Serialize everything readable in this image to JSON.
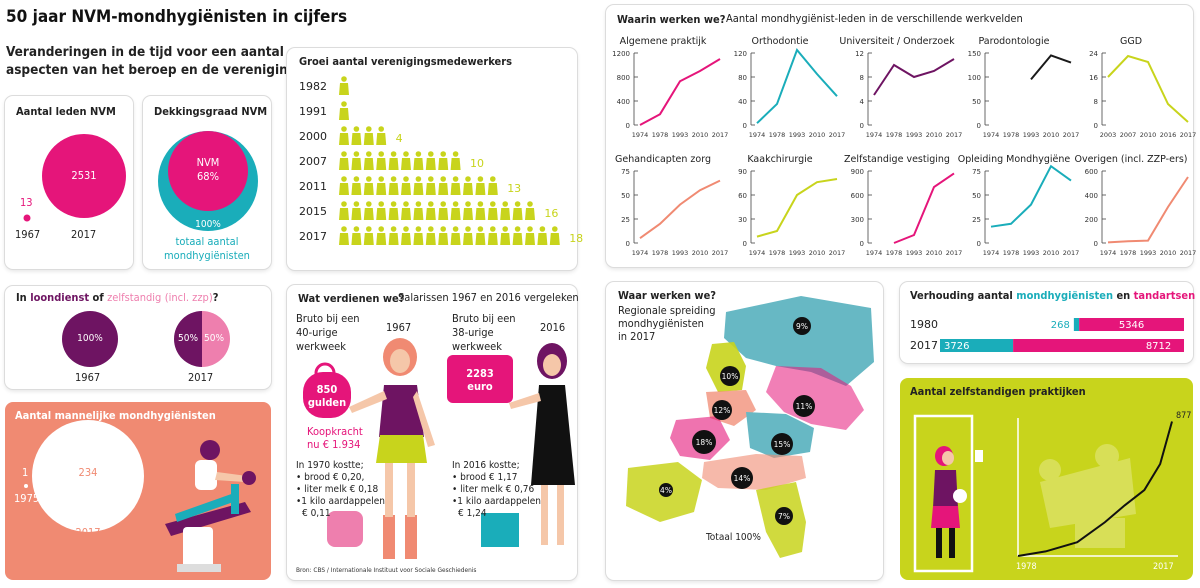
{
  "header": {
    "title": "50 jaar NVM-mondhygiënisten in cijfers",
    "subtitle_line1": "Veranderingen in de tijd voor een aantal",
    "subtitle_line2": "aspecten van het beroep en de vereniging"
  },
  "colors": {
    "magenta": "#e5157a",
    "teal": "#1aadba",
    "purple": "#6e1462",
    "pink": "#ee7fae",
    "lime": "#c8d41c",
    "salmon": "#f08a72",
    "black": "#1a1a1a"
  },
  "leden": {
    "title": "Aantal leden NVM",
    "value_1967": "13",
    "value_2017": "2531",
    "year_1967": "1967",
    "year_2017": "2017"
  },
  "dekking": {
    "title": "Dekkingsgraad NVM",
    "inner_label": "NVM",
    "inner_pct": "68%",
    "outer_pct": "100%",
    "caption_line1": "totaal aantal",
    "caption_line2": "mondhygiënisten"
  },
  "loondienst": {
    "title_in": "In",
    "title_loon": "loondienst",
    "title_of": "of",
    "title_zelf": "zelfstandig",
    "title_zzp": "(incl. zzp)",
    "title_q": "?",
    "pie_1967_label": "100%",
    "pie_2017_left": "50%",
    "pie_2017_right": "50%",
    "year_1967": "1967",
    "year_2017": "2017"
  },
  "mannelijk": {
    "title": "Aantal mannelijke mondhygiënisten",
    "value_1975": "1",
    "year_1975": "1975",
    "value_2017": "234",
    "year_2017": "2017"
  },
  "groei": {
    "title": "Groei aantal verenigingsmedewerkers",
    "rows": [
      {
        "year": "1982",
        "count": 1,
        "label": ""
      },
      {
        "year": "1991",
        "count": 1,
        "label": ""
      },
      {
        "year": "2000",
        "count": 4,
        "label": "4"
      },
      {
        "year": "2007",
        "count": 10,
        "label": "10"
      },
      {
        "year": "2011",
        "count": 13,
        "label": "13"
      },
      {
        "year": "2015",
        "count": 16,
        "label": "16"
      },
      {
        "year": "2017",
        "count": 18,
        "label": "18"
      }
    ]
  },
  "verdienen": {
    "title": "Wat verdienen we?",
    "subtitle": "Salarissen 1967 en 2016 vergeleken",
    "left_head_1": "Bruto bij een",
    "left_head_2": "40-urige",
    "left_head_3": "werkweek",
    "left_year": "1967",
    "left_amount": "850",
    "left_unit": "gulden",
    "koopkracht_1": "Koopkracht",
    "koopkracht_2": "nu € 1.934",
    "left_cost_head": "In 1970 kostte;",
    "left_cost_1": "• brood € 0,20,",
    "left_cost_2": "• liter melk € 0,18",
    "left_cost_3": "•1 kilo aardappelen",
    "left_cost_4": "€ 0,11",
    "right_head_1": "Bruto bij een",
    "right_head_2": "38-urige",
    "right_head_3": "werkweek",
    "right_year": "2016",
    "right_amount": "2283",
    "right_unit": "euro",
    "right_cost_head": "In 2016 kostte;",
    "right_cost_1": "• brood € 1,17",
    "right_cost_2": "• liter melk € 0,76",
    "right_cost_3": "•1 kilo aardappelen",
    "right_cost_4": "€ 1,24",
    "source": "Bron: CBS / Internationale Instituut voor Sociale Geschiedenis"
  },
  "werkvelden": {
    "title": "Waarin werken we?",
    "subtitle": "Aantal mondhygiënist-leden in de verschillende werkvelden"
  },
  "chart_data": [
    {
      "type": "line",
      "title": "Algemene praktijk",
      "x": [
        "1974",
        "1978",
        "1993",
        "2010",
        "2017"
      ],
      "series": [
        {
          "values": [
            0,
            180,
            730,
            900,
            1100
          ]
        }
      ],
      "yticks": [
        "0",
        "400",
        "800",
        "1200"
      ],
      "ylim": [
        0,
        1200
      ],
      "color": "#e5157a"
    },
    {
      "type": "line",
      "title": "Orthodontie",
      "x": [
        "1974",
        "1978",
        "1993",
        "2010",
        "2017"
      ],
      "series": [
        {
          "values": [
            3,
            35,
            125,
            85,
            48
          ]
        }
      ],
      "yticks": [
        "0",
        "40",
        "80",
        "120"
      ],
      "ylim": [
        0,
        120
      ],
      "color": "#1aadba"
    },
    {
      "type": "line",
      "title": "Universiteit / Onderzoek",
      "x": [
        "1974",
        "1978",
        "1993",
        "2010",
        "2017"
      ],
      "series": [
        {
          "values": [
            5,
            10,
            8,
            9,
            11
          ]
        }
      ],
      "yticks": [
        "0",
        "4",
        "8",
        "12"
      ],
      "ylim": [
        0,
        12
      ],
      "color": "#6e1462"
    },
    {
      "type": "line",
      "title": "Parodontologie",
      "x": [
        "1974",
        "1978",
        "1993",
        "2010",
        "2017"
      ],
      "series": [
        {
          "values": [
            null,
            null,
            95,
            145,
            130
          ]
        }
      ],
      "yticks": [
        "0",
        "50",
        "100",
        "150"
      ],
      "ylim": [
        0,
        150
      ],
      "color": "#1a1a1a"
    },
    {
      "type": "line",
      "title": "GGD",
      "x": [
        "2003",
        "2007",
        "2010",
        "2016",
        "2017"
      ],
      "series": [
        {
          "values": [
            16,
            23,
            21,
            7,
            1
          ]
        }
      ],
      "yticks": [
        "0",
        "8",
        "16",
        "24"
      ],
      "ylim": [
        0,
        24
      ],
      "color": "#c8d41c"
    },
    {
      "type": "line",
      "title": "Gehandicapten zorg",
      "x": [
        "1974",
        "1978",
        "1993",
        "2010",
        "2017"
      ],
      "series": [
        {
          "values": [
            5,
            20,
            40,
            55,
            65
          ]
        }
      ],
      "yticks": [
        "0",
        "25",
        "50",
        "75"
      ],
      "ylim": [
        0,
        75
      ],
      "color": "#f08a72"
    },
    {
      "type": "line",
      "title": "Kaakchirurgie",
      "x": [
        "1974",
        "1978",
        "1993",
        "2010",
        "2017"
      ],
      "series": [
        {
          "values": [
            8,
            15,
            60,
            76,
            80
          ]
        }
      ],
      "yticks": [
        "0",
        "30",
        "60",
        "90"
      ],
      "ylim": [
        0,
        90
      ],
      "color": "#c8d41c"
    },
    {
      "type": "line",
      "title": "Zelfstandige vestiging",
      "x": [
        "1974",
        "1978",
        "1993",
        "2010",
        "2017"
      ],
      "series": [
        {
          "values": [
            null,
            0,
            100,
            700,
            870
          ]
        }
      ],
      "yticks": [
        "0",
        "300",
        "600",
        "900"
      ],
      "ylim": [
        0,
        900
      ],
      "color": "#e5157a"
    },
    {
      "type": "line",
      "title": "Opleiding Mondhygiëne",
      "x": [
        "1974",
        "1978",
        "1993",
        "2010",
        "2017"
      ],
      "series": [
        {
          "values": [
            17,
            20,
            40,
            80,
            65
          ]
        }
      ],
      "yticks": [
        "0",
        "25",
        "50",
        "75"
      ],
      "ylim": [
        0,
        75
      ],
      "color": "#1aadba"
    },
    {
      "type": "line",
      "title": "Overigen (incl. ZZP-ers)",
      "x": [
        "1974",
        "1978",
        "1993",
        "2010",
        "2017"
      ],
      "series": [
        {
          "values": [
            5,
            15,
            20,
            300,
            550
          ]
        }
      ],
      "yticks": [
        "0",
        "200",
        "400",
        "600"
      ],
      "ylim": [
        0,
        600
      ],
      "color": "#f08a72"
    },
    {
      "type": "bar",
      "title": "Verhouding aantal mondhygiënisten en tandartsen",
      "categories": [
        "1980",
        "2017"
      ],
      "series": [
        {
          "name": "mondhygiënisten",
          "values": [
            268,
            3726
          ]
        },
        {
          "name": "tandartsen",
          "values": [
            5346,
            8712
          ]
        }
      ]
    },
    {
      "type": "line",
      "title": "Aantal zelfstandigen praktijken",
      "x": [
        1978,
        1985,
        1993,
        2000,
        2005,
        2010,
        2014,
        2017
      ],
      "series": [
        {
          "values": [
            0,
            30,
            90,
            220,
            330,
            430,
            600,
            877
          ]
        }
      ],
      "xticks": [
        "1978",
        "2017"
      ],
      "end_label": "877"
    }
  ],
  "regio": {
    "title": "Waar werken we?",
    "line1": "Regionale spreiding",
    "line2": "mondhygiënisten",
    "line3": "in 2017",
    "regions": [
      {
        "label": "9%"
      },
      {
        "label": "10%"
      },
      {
        "label": "12%"
      },
      {
        "label": "11%"
      },
      {
        "label": "18%"
      },
      {
        "label": "15%"
      },
      {
        "label": "14%"
      },
      {
        "label": "4%"
      },
      {
        "label": "7%"
      }
    ],
    "total": "Totaal 100%"
  },
  "verhouding": {
    "title_pre": "Verhouding aantal",
    "title_mh": "mondhygiënisten",
    "title_en": "en",
    "title_td": "tandartsen",
    "rows": [
      {
        "year": "1980",
        "mh": "268",
        "td": "5346"
      },
      {
        "year": "2017",
        "mh": "3726",
        "td": "8712"
      }
    ]
  },
  "zelfstandigen": {
    "title": "Aantal zelfstandigen praktijken",
    "end_value": "877",
    "x_start": "1978",
    "x_end": "2017"
  }
}
